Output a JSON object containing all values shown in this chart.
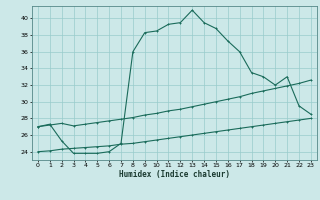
{
  "xlabel": "Humidex (Indice chaleur)",
  "bg_color": "#cce8e8",
  "line_color": "#1a6b5a",
  "grid_color": "#99cccc",
  "xlim": [
    -0.5,
    23.5
  ],
  "ylim": [
    23.0,
    41.5
  ],
  "xticks": [
    0,
    1,
    2,
    3,
    4,
    5,
    6,
    7,
    8,
    9,
    10,
    11,
    12,
    13,
    14,
    15,
    16,
    17,
    18,
    19,
    20,
    21,
    22,
    23
  ],
  "yticks": [
    24,
    26,
    28,
    30,
    32,
    34,
    36,
    38,
    40
  ],
  "line1_x": [
    0,
    1,
    2,
    3,
    4,
    5,
    6,
    7,
    8,
    9,
    10,
    11,
    12,
    13,
    14,
    15,
    16,
    17,
    18,
    19,
    20,
    21,
    22,
    23
  ],
  "line1_y": [
    27.0,
    27.3,
    25.3,
    23.8,
    23.8,
    23.8,
    24.0,
    25.0,
    36.0,
    38.3,
    38.5,
    39.3,
    39.5,
    41.0,
    39.5,
    38.8,
    37.3,
    36.0,
    33.5,
    33.0,
    32.0,
    33.0,
    29.5,
    28.5
  ],
  "line2_x": [
    0,
    1,
    2,
    3,
    4,
    5,
    6,
    7,
    8,
    9,
    10,
    11,
    12,
    13,
    14,
    15,
    16,
    17,
    18,
    19,
    20,
    21,
    22,
    23
  ],
  "line2_y": [
    27.0,
    27.2,
    27.4,
    27.1,
    27.3,
    27.5,
    27.7,
    27.9,
    28.1,
    28.4,
    28.6,
    28.9,
    29.1,
    29.4,
    29.7,
    30.0,
    30.3,
    30.6,
    31.0,
    31.3,
    31.6,
    31.9,
    32.2,
    32.6
  ],
  "line3_x": [
    0,
    1,
    2,
    3,
    4,
    5,
    6,
    7,
    8,
    9,
    10,
    11,
    12,
    13,
    14,
    15,
    16,
    17,
    18,
    19,
    20,
    21,
    22,
    23
  ],
  "line3_y": [
    24.0,
    24.1,
    24.3,
    24.4,
    24.5,
    24.6,
    24.7,
    24.9,
    25.0,
    25.2,
    25.4,
    25.6,
    25.8,
    26.0,
    26.2,
    26.4,
    26.6,
    26.8,
    27.0,
    27.2,
    27.4,
    27.6,
    27.8,
    28.0
  ]
}
